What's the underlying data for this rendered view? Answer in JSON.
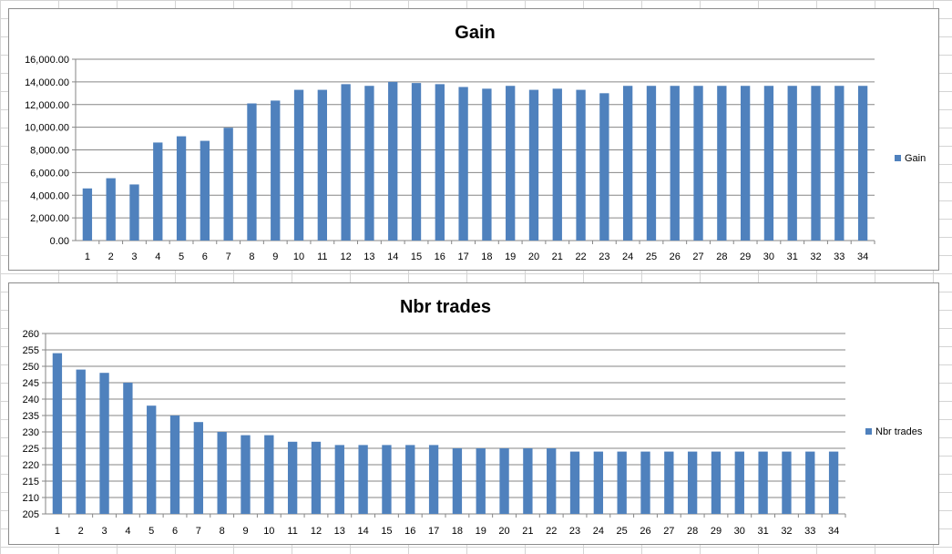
{
  "chart_data": [
    {
      "type": "bar",
      "title": "Gain",
      "xlabel": "",
      "ylabel": "",
      "ylim": [
        0,
        16000
      ],
      "ytick_step": 2000,
      "ytick_format": "fixed2comma",
      "grid": true,
      "legend": "right",
      "color": "#4f81bd",
      "categories": [
        "1",
        "2",
        "3",
        "4",
        "5",
        "6",
        "7",
        "8",
        "9",
        "10",
        "11",
        "12",
        "13",
        "14",
        "15",
        "16",
        "17",
        "18",
        "19",
        "20",
        "21",
        "22",
        "23",
        "24",
        "25",
        "26",
        "27",
        "28",
        "29",
        "30",
        "31",
        "32",
        "33",
        "34"
      ],
      "series": [
        {
          "name": "Gain",
          "values": [
            4600,
            5500,
            4950,
            8650,
            9200,
            8800,
            9950,
            12100,
            12350,
            13300,
            13300,
            13800,
            13650,
            14000,
            13900,
            13800,
            13550,
            13400,
            13650,
            13300,
            13400,
            13300,
            13000,
            13650,
            13650,
            13650,
            13650,
            13650,
            13650,
            13650,
            13650,
            13650,
            13650,
            13650
          ]
        }
      ]
    },
    {
      "type": "bar",
      "title": "Nbr trades",
      "xlabel": "",
      "ylabel": "",
      "ylim": [
        205,
        260
      ],
      "ytick_step": 5,
      "ytick_format": "integer",
      "grid": true,
      "legend": "right",
      "color": "#4f81bd",
      "categories": [
        "1",
        "2",
        "3",
        "4",
        "5",
        "6",
        "7",
        "8",
        "9",
        "10",
        "11",
        "12",
        "13",
        "14",
        "15",
        "16",
        "17",
        "18",
        "19",
        "20",
        "21",
        "22",
        "23",
        "24",
        "25",
        "26",
        "27",
        "28",
        "29",
        "30",
        "31",
        "32",
        "33",
        "34"
      ],
      "series": [
        {
          "name": "Nbr trades",
          "values": [
            254,
            249,
            248,
            245,
            238,
            235,
            233,
            230,
            229,
            229,
            227,
            227,
            226,
            226,
            226,
            226,
            226,
            225,
            225,
            225,
            225,
            225,
            224,
            224,
            224,
            224,
            224,
            224,
            224,
            224,
            224,
            224,
            224,
            224
          ]
        }
      ]
    }
  ]
}
